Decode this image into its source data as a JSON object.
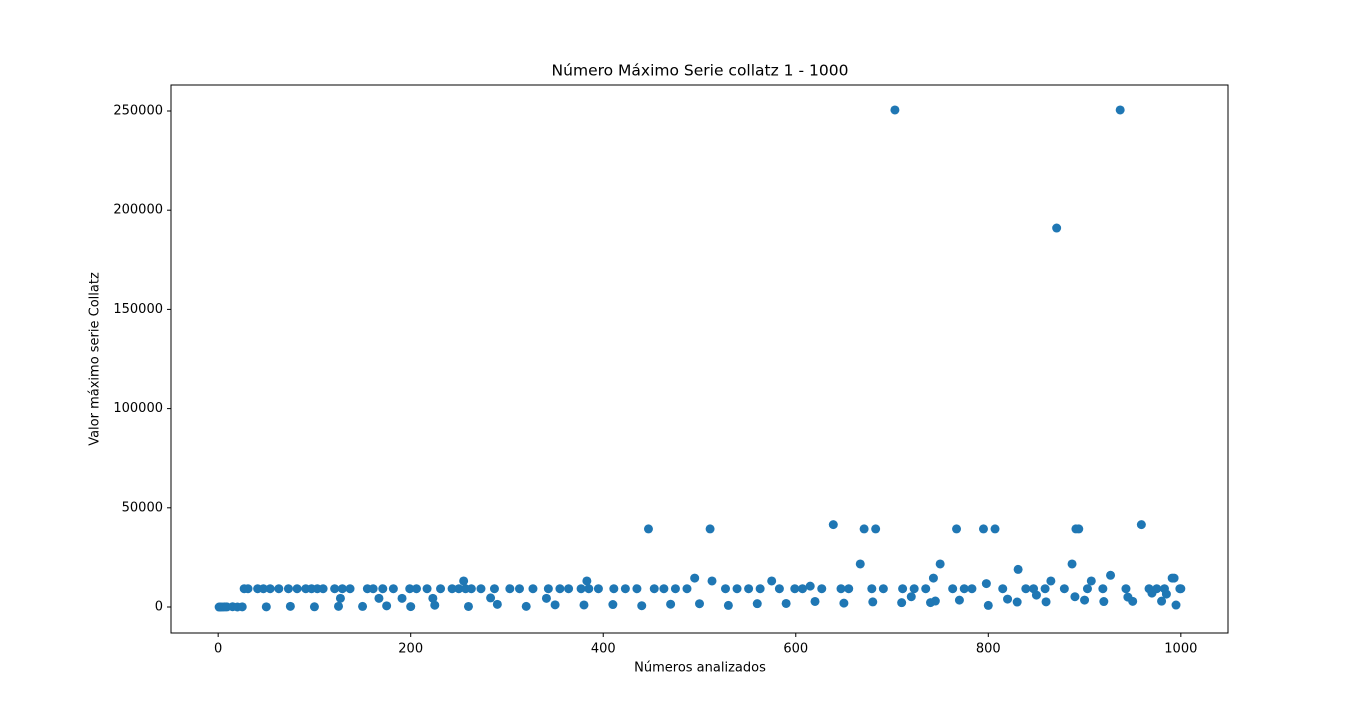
{
  "chart_data": {
    "type": "scatter",
    "title": "Número Máximo Serie collatz 1 - 1000",
    "xlabel": "Números analizados",
    "ylabel": "Valor máximo serie Collatz",
    "color": "#1f77b4",
    "xlim": [
      -49,
      1049
    ],
    "ylim": [
      -13100,
      263100
    ],
    "xticks": [
      0,
      200,
      400,
      600,
      800,
      1000
    ],
    "yticks": [
      0,
      50000,
      100000,
      150000,
      200000,
      250000
    ],
    "x": [
      1,
      2,
      3,
      5,
      7,
      9,
      15,
      20,
      27,
      31,
      41,
      47,
      54,
      63,
      73,
      82,
      91,
      97,
      103,
      109,
      121,
      127,
      129,
      137,
      155,
      161,
      167,
      171,
      182,
      191,
      199,
      206,
      217,
      223,
      231,
      243,
      250,
      255,
      257,
      263,
      273,
      283,
      287,
      303,
      313,
      327,
      341,
      343,
      355,
      364,
      377,
      383,
      385,
      395,
      411,
      423,
      435,
      447,
      453,
      463,
      475,
      487,
      495,
      511,
      513,
      527,
      539,
      551,
      563,
      575,
      583,
      599,
      607,
      615,
      627,
      639,
      647,
      655,
      667,
      671,
      679,
      683,
      691,
      703,
      711,
      723,
      735,
      743,
      750,
      763,
      767,
      775,
      783,
      795,
      798,
      807,
      815,
      831,
      839,
      847,
      859,
      865,
      871,
      879,
      887,
      891,
      894,
      903,
      907,
      919,
      927,
      937,
      943,
      959,
      967,
      975,
      983,
      991,
      993,
      999,
      1000,
      25,
      50,
      75,
      100,
      125,
      150,
      175,
      200,
      225,
      260,
      290,
      320,
      350,
      380,
      410,
      440,
      470,
      500,
      530,
      560,
      590,
      620,
      650,
      680,
      710,
      740,
      770,
      800,
      830,
      860,
      890,
      920,
      950,
      980,
      720,
      745,
      820,
      850,
      900,
      945,
      970,
      985,
      995
    ],
    "y": [
      1,
      2,
      16,
      16,
      52,
      52,
      160,
      20,
      9232,
      9232,
      9232,
      9232,
      9232,
      9232,
      9232,
      9232,
      9232,
      9232,
      9232,
      9232,
      9232,
      4372,
      9232,
      9232,
      9232,
      9232,
      4372,
      9232,
      9232,
      4372,
      9232,
      9232,
      9232,
      4372,
      9232,
      9232,
      9232,
      13120,
      9232,
      9232,
      9232,
      4600,
      9232,
      9232,
      9232,
      9232,
      4372,
      9232,
      9232,
      9232,
      9232,
      13120,
      9232,
      9232,
      9232,
      9232,
      9232,
      39364,
      9232,
      9232,
      9232,
      9232,
      14584,
      39364,
      13120,
      9232,
      9232,
      9232,
      9232,
      13120,
      9232,
      9232,
      9232,
      10528,
      9232,
      41524,
      9232,
      9232,
      21688,
      39364,
      9232,
      39364,
      9232,
      250504,
      9232,
      9232,
      9232,
      14584,
      21688,
      9232,
      39364,
      9232,
      9232,
      39364,
      11800,
      39364,
      9232,
      18952,
      9232,
      9232,
      9232,
      13120,
      190996,
      9232,
      21688,
      39364,
      39364,
      9232,
      13120,
      9232,
      16000,
      250504,
      9232,
      41524,
      9232,
      9232,
      9232,
      14584,
      14584,
      9232,
      9232,
      88,
      88,
      340,
      100,
      340,
      304,
      592,
      200,
      916,
      260,
      1336,
      320,
      1096,
      1024,
      1240,
      664,
      1420,
      1672,
      800,
      1696,
      1780,
      2800,
      1960,
      2560,
      2180,
      2224,
      3472,
      800,
      2500,
      2596,
      5200,
      2764,
      2860,
      2944,
      5200,
      3000,
      4000,
      6000,
      3500,
      5000,
      7000,
      6500,
      1000
    ]
  }
}
